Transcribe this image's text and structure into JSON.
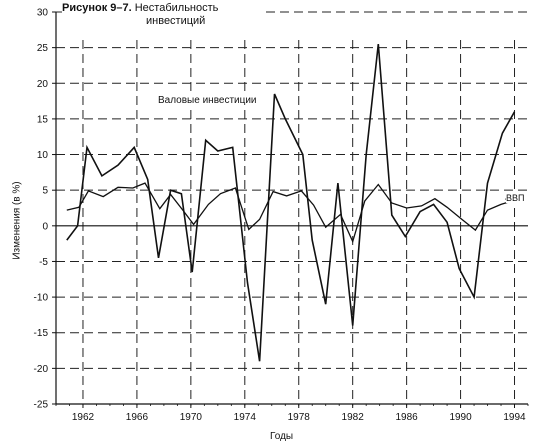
{
  "chart_data": {
    "type": "line",
    "title": "Рисунок 9–7.",
    "subtitle_lines": [
      "Нестабильность",
      "инвестиций"
    ],
    "xlabel": "Годы",
    "ylabel": "Изменения (в %)",
    "xlim": [
      1960,
      1995
    ],
    "ylim": [
      -25,
      30
    ],
    "x_ticks": [
      1962,
      1966,
      1970,
      1974,
      1978,
      1982,
      1986,
      1990,
      1994
    ],
    "y_ticks": [
      -25,
      -20,
      -15,
      -10,
      -5,
      0,
      5,
      10,
      15,
      20,
      25,
      30
    ],
    "grid": true,
    "series": [
      {
        "name": "Валовые инвестиции",
        "x": [
          1960.8,
          1961.6,
          1962.3,
          1963.4,
          1964.6,
          1965.8,
          1966.8,
          1967.6,
          1968.5,
          1969.3,
          1970.1,
          1971.1,
          1972.0,
          1973.1,
          1974.2,
          1975.1,
          1976.2,
          1977.0,
          1978.3,
          1979.0,
          1980.0,
          1980.9,
          1982.0,
          1983.0,
          1983.9,
          1984.9,
          1985.9,
          1987.0,
          1988.0,
          1989.0,
          1989.9,
          1991.0,
          1992.0,
          1993.1,
          1994.0
        ],
        "y": [
          -2,
          0,
          11,
          7,
          8.5,
          11,
          6.5,
          -4.5,
          5,
          4.5,
          -6.5,
          12,
          10.5,
          11,
          -8,
          -19,
          18.5,
          15,
          10,
          -2,
          -11,
          6,
          -14,
          10,
          25.5,
          1.5,
          -1.5,
          2,
          3,
          0.5,
          -6,
          -10,
          6,
          13,
          16
        ]
      },
      {
        "name": "ВВП",
        "x": [
          1960.8,
          1961.7,
          1962.4,
          1963.5,
          1964.6,
          1965.7,
          1966.6,
          1967.7,
          1968.5,
          1969.4,
          1970.2,
          1971.3,
          1972.2,
          1973.3,
          1974.3,
          1975.1,
          1976.1,
          1977.1,
          1978.2,
          1979.1,
          1980.0,
          1981.1,
          1982.0,
          1982.9,
          1983.9,
          1984.9,
          1986.0,
          1987.1,
          1988.1,
          1989.0,
          1990.1,
          1991.1,
          1992.0,
          1993.0,
          1994.0
        ],
        "y": [
          2.2,
          2.6,
          4.9,
          4.1,
          5.4,
          5.3,
          6,
          2.4,
          4.4,
          2.2,
          0.2,
          3,
          4.5,
          5.3,
          -0.5,
          0.9,
          4.8,
          4.2,
          4.9,
          2.9,
          -0.2,
          1.6,
          -2.2,
          3.5,
          5.8,
          3.2,
          2.5,
          2.8,
          3.8,
          2.6,
          0.9,
          -0.6,
          2.2,
          3,
          3.6
        ]
      }
    ]
  }
}
